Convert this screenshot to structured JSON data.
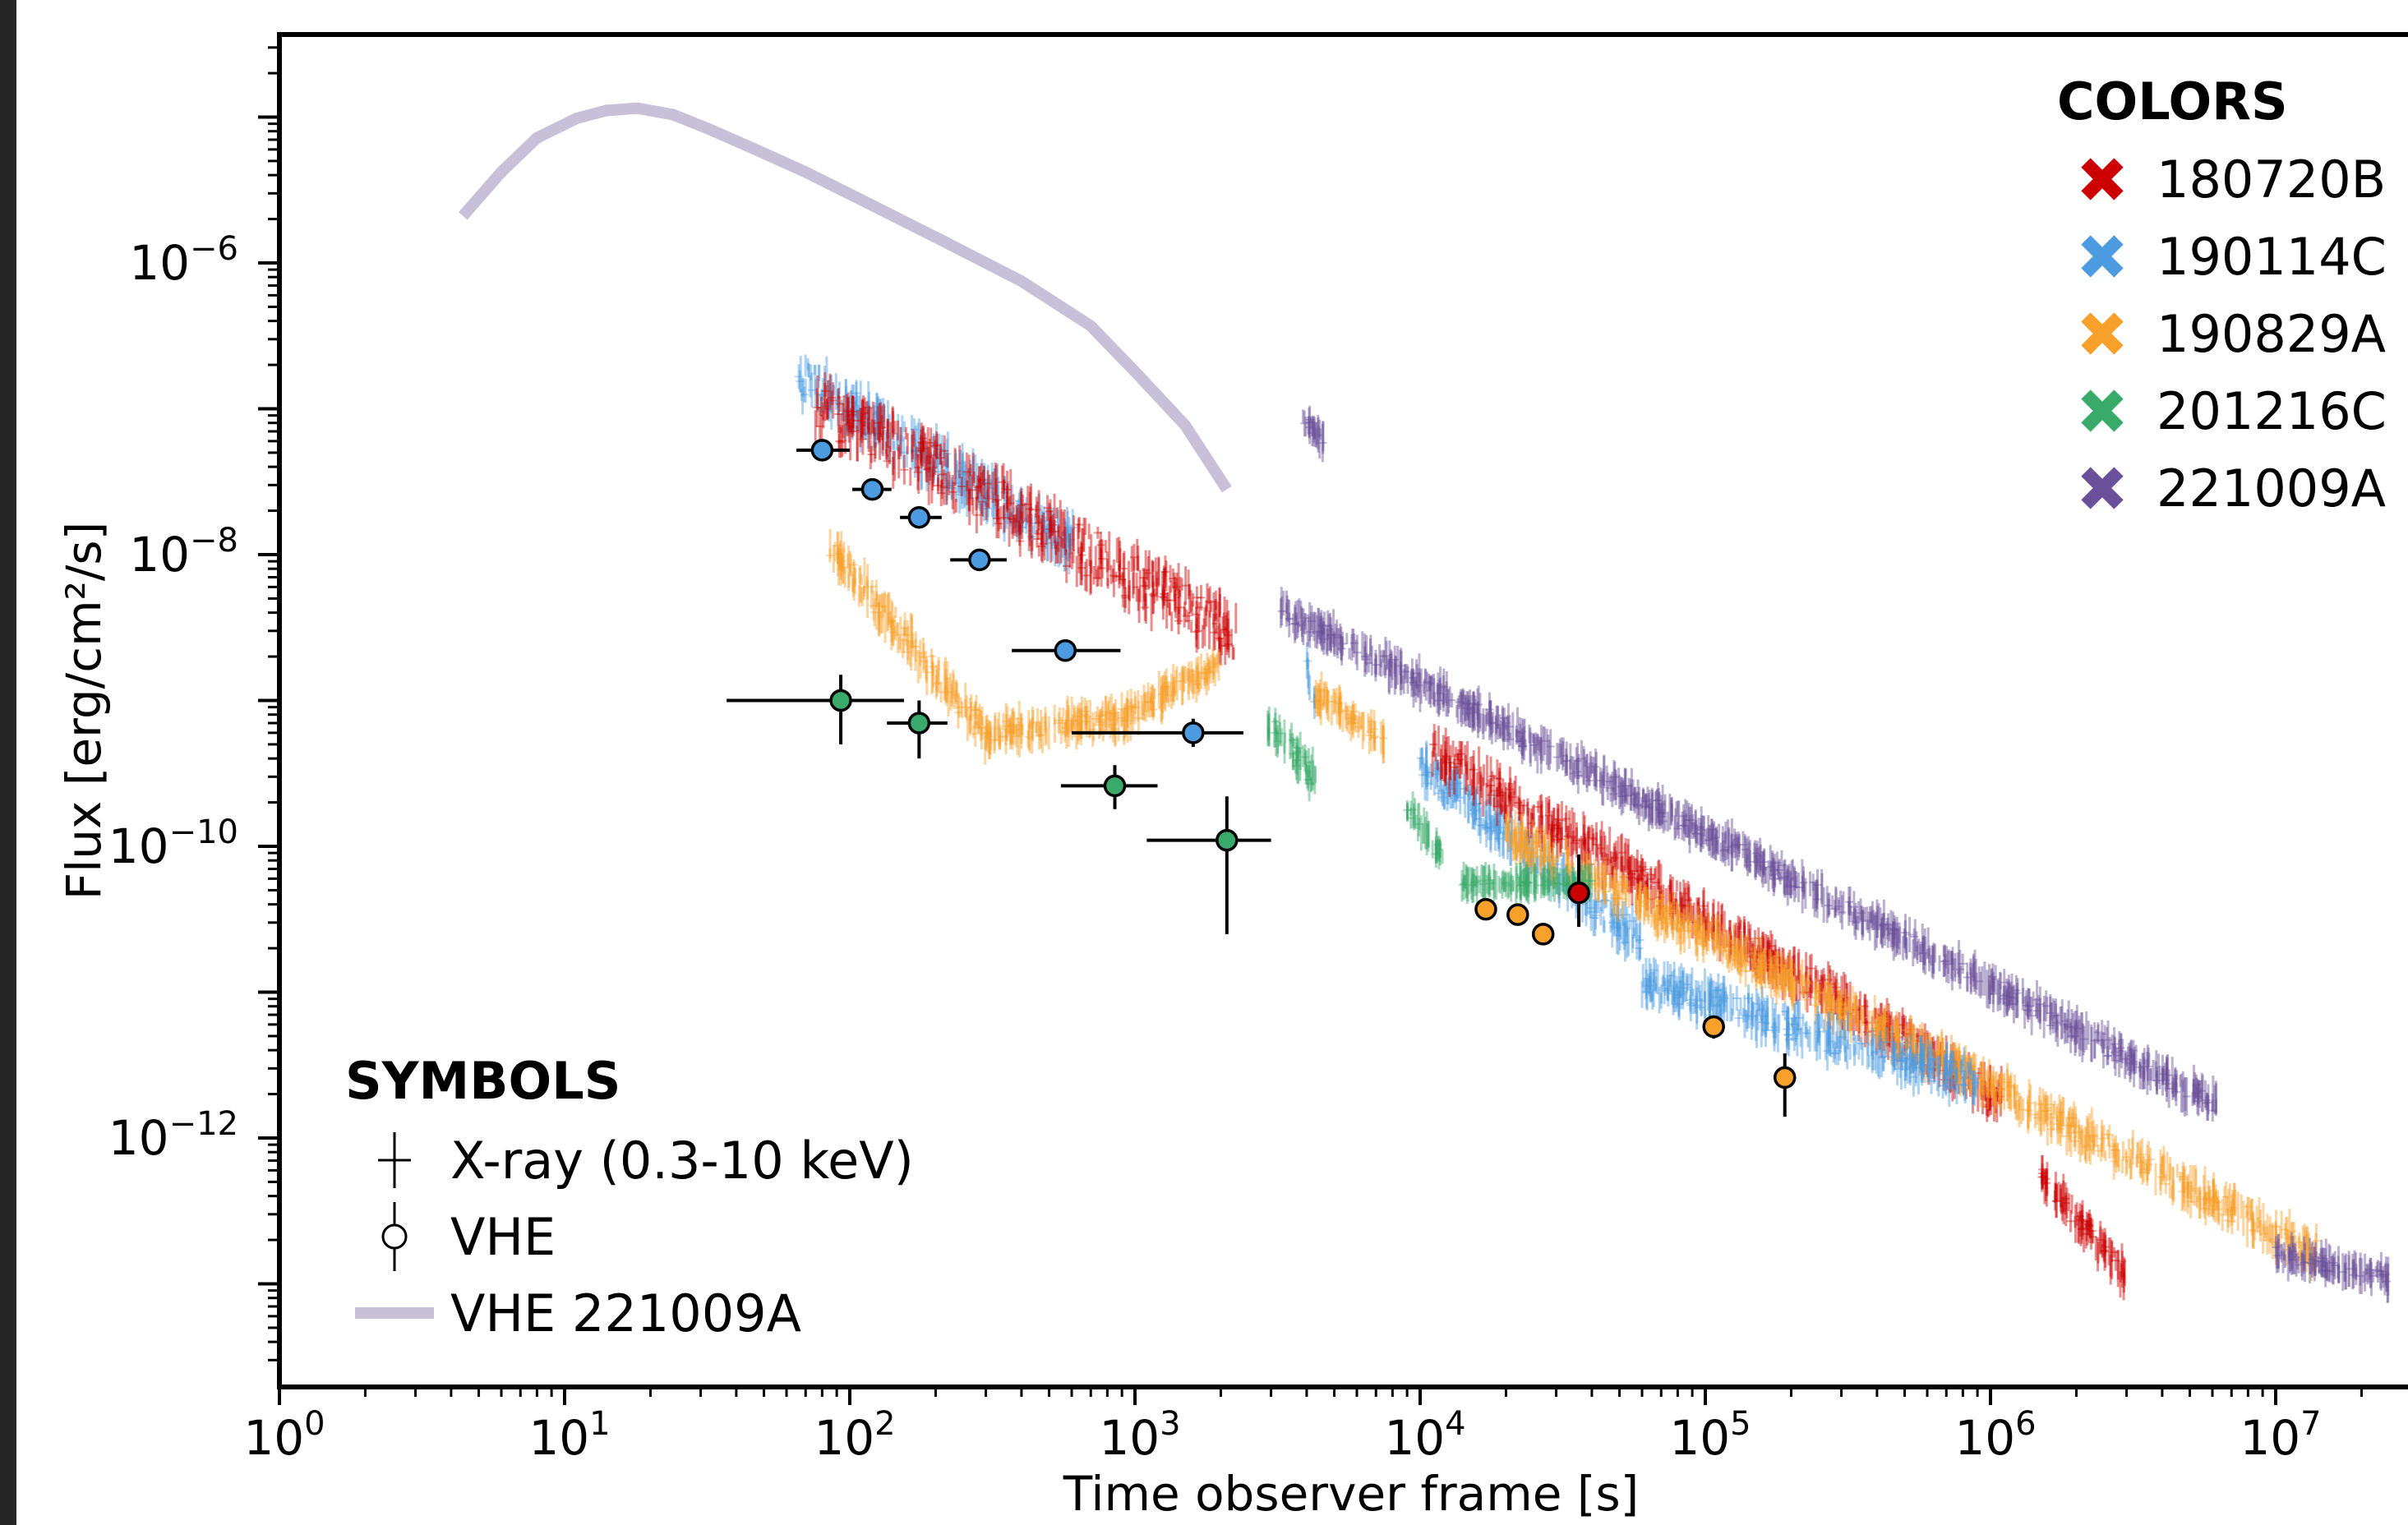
{
  "chart_data": {
    "type": "scatter",
    "xlabel": "Time observer frame [s]",
    "ylabel": "Flux [erg/cm²/s]",
    "x_scale": "log",
    "y_scale": "log",
    "xlim": [
      1,
      30000000
    ],
    "ylim": [
      2e-14,
      0.0001
    ],
    "x_ticks": [
      {
        "value": 1,
        "base": "10",
        "exp": "0"
      },
      {
        "value": 10,
        "base": "10",
        "exp": "1"
      },
      {
        "value": 100,
        "base": "10",
        "exp": "2"
      },
      {
        "value": 1000,
        "base": "10",
        "exp": "3"
      },
      {
        "value": 10000,
        "base": "10",
        "exp": "4"
      },
      {
        "value": 100000,
        "base": "10",
        "exp": "5"
      },
      {
        "value": 1000000,
        "base": "10",
        "exp": "6"
      },
      {
        "value": 10000000,
        "base": "10",
        "exp": "7"
      }
    ],
    "y_ticks": [
      {
        "value": 1e-06,
        "base": "10",
        "exp": "−6"
      },
      {
        "value": 1e-08,
        "base": "10",
        "exp": "−8"
      },
      {
        "value": 1e-10,
        "base": "10",
        "exp": "−10"
      },
      {
        "value": 1e-12,
        "base": "10",
        "exp": "−12"
      }
    ],
    "legend_colors": {
      "title": "COLORS",
      "placement": "top-right",
      "entries": [
        {
          "label": "180720B",
          "color": "#cc0000"
        },
        {
          "label": "190114C",
          "color": "#4c9be0"
        },
        {
          "label": "190829A",
          "color": "#f7a02a"
        },
        {
          "label": "201216C",
          "color": "#3aaa6a"
        },
        {
          "label": "221009A",
          "color": "#6a4f9a"
        }
      ]
    },
    "legend_symbols": {
      "title": "SYMBOLS",
      "placement": "bottom-left",
      "entries": [
        {
          "label": "X-ray (0.3-10 keV)",
          "symbol": "cross"
        },
        {
          "label": "VHE",
          "symbol": "circle-errorbar"
        },
        {
          "label": "VHE 221009A",
          "symbol": "band"
        }
      ]
    },
    "vhe_221009A_curve": {
      "color": "#c8bfd9",
      "x": [
        4.4,
        6,
        8,
        11,
        14,
        18,
        24,
        32,
        45,
        70,
        110,
        200,
        400,
        700,
        1000,
        1500,
        2100
      ],
      "y": [
        2.1e-06,
        4.2e-06,
        7.2e-06,
        9.8e-06,
        1.11e-05,
        1.15e-05,
        1.04e-05,
        8.3e-06,
        6.2e-06,
        4.2e-06,
        2.7e-06,
        1.5e-06,
        7.5e-07,
        3.7e-07,
        1.8e-07,
        7.7e-08,
        2.8e-08
      ]
    },
    "vhe_points": [
      {
        "grb": "190114C",
        "x": 80,
        "y": 5.2e-08,
        "xerr": [
          15,
          20
        ],
        "yerr": [
          6e-09,
          6e-09
        ]
      },
      {
        "grb": "190114C",
        "x": 120,
        "y": 2.8e-08,
        "xerr": [
          18,
          20
        ],
        "yerr": [
          3e-09,
          3e-09
        ]
      },
      {
        "grb": "190114C",
        "x": 175,
        "y": 1.8e-08,
        "xerr": [
          25,
          35
        ],
        "yerr": [
          2e-09,
          2e-09
        ]
      },
      {
        "grb": "190114C",
        "x": 285,
        "y": 9.2e-09,
        "xerr": [
          60,
          70
        ],
        "yerr": [
          1e-09,
          1e-09
        ]
      },
      {
        "grb": "190114C",
        "x": 570,
        "y": 2.2e-09,
        "xerr": [
          200,
          320
        ],
        "yerr": [
          3e-10,
          3e-10
        ]
      },
      {
        "grb": "190114C",
        "x": 1600,
        "y": 6e-10,
        "xerr": [
          1000,
          800
        ],
        "yerr": [
          1.2e-10,
          1.5e-10
        ]
      },
      {
        "grb": "201216C",
        "x": 93,
        "y": 1e-09,
        "xerr": [
          56,
          62
        ],
        "yerr": [
          5e-10,
          5e-10
        ]
      },
      {
        "grb": "201216C",
        "x": 175,
        "y": 7e-10,
        "xerr": [
          40,
          45
        ],
        "yerr": [
          3e-10,
          3e-10
        ]
      },
      {
        "grb": "201216C",
        "x": 850,
        "y": 2.6e-10,
        "xerr": [
          300,
          350
        ],
        "yerr": [
          8e-11,
          1e-10
        ]
      },
      {
        "grb": "201216C",
        "x": 2100,
        "y": 1.1e-10,
        "xerr": [
          1000,
          900
        ],
        "yerr": [
          8.5e-11,
          1.1e-10
        ]
      },
      {
        "grb": "190829A",
        "x": 17000,
        "y": 3.7e-11,
        "xerr": [
          0,
          0
        ],
        "yerr": [
          0,
          0
        ]
      },
      {
        "grb": "190829A",
        "x": 22000,
        "y": 3.4e-11,
        "xerr": [
          0,
          0
        ],
        "yerr": [
          0,
          0
        ]
      },
      {
        "grb": "190829A",
        "x": 27000,
        "y": 2.5e-11,
        "xerr": [
          0,
          0
        ],
        "yerr": [
          0,
          0
        ]
      },
      {
        "grb": "180720B",
        "x": 36000,
        "y": 4.8e-11,
        "xerr": [
          0,
          0
        ],
        "yerr": [
          2e-11,
          4e-11
        ]
      },
      {
        "grb": "190829A",
        "x": 107000,
        "y": 5.8e-12,
        "xerr": [
          0,
          0
        ],
        "yerr": [
          1e-12,
          1e-12
        ]
      },
      {
        "grb": "190829A",
        "x": 190000,
        "y": 2.6e-12,
        "xerr": [
          0,
          0
        ],
        "yerr": [
          1.2e-12,
          1.2e-12
        ]
      }
    ],
    "xray_segments": [
      {
        "grb": "190114C",
        "x0": 66,
        "x1": 620,
        "y0": 1.7e-07,
        "y1": 1.1e-08,
        "scatter": 0.28
      },
      {
        "grb": "180720B",
        "x0": 75,
        "x1": 2300,
        "y0": 1.1e-07,
        "y1": 2.8e-09,
        "scatter": 0.35
      },
      {
        "grb": "190829A",
        "x0": 85,
        "x1": 300,
        "y0": 1.1e-08,
        "y1": 6e-10,
        "scatter": 0.2
      },
      {
        "grb": "190829A",
        "x0": 300,
        "x1": 900,
        "y0": 6e-10,
        "y1": 7.5e-10,
        "scatter": 0.15
      },
      {
        "grb": "190829A",
        "x0": 900,
        "x1": 2000,
        "y0": 7.5e-10,
        "y1": 1.8e-09,
        "scatter": 0.12
      },
      {
        "grb": "221009A",
        "x0": 3800,
        "x1": 4600,
        "y0": 9e-08,
        "y1": 6e-08,
        "scatter": 0.08
      },
      {
        "grb": "190114C",
        "x0": 4000,
        "x1": 4300,
        "y0": 1.8e-09,
        "y1": 9e-10,
        "scatter": 0.15
      },
      {
        "grb": "201216C",
        "x0": 2900,
        "x1": 4400,
        "y0": 7e-10,
        "y1": 2.8e-10,
        "scatter": 0.18
      },
      {
        "grb": "190829A",
        "x0": 4300,
        "x1": 7500,
        "y0": 1.1e-09,
        "y1": 5.5e-10,
        "scatter": 0.12
      },
      {
        "grb": "201216C",
        "x0": 9000,
        "x1": 12000,
        "y0": 1.8e-10,
        "y1": 8.5e-11,
        "scatter": 0.1
      },
      {
        "grb": "190114C",
        "x0": 10000,
        "x1": 60000,
        "y0": 3.5e-10,
        "y1": 2.2e-11,
        "scatter": 0.2
      },
      {
        "grb": "180720B",
        "x0": 11000,
        "x1": 1100000,
        "y0": 4.5e-10,
        "y1": 1.8e-12,
        "scatter": 0.22
      },
      {
        "grb": "190829A",
        "x0": 20000,
        "x1": 14000000,
        "y0": 1.2e-10,
        "y1": 1.6e-13,
        "scatter": 0.18
      },
      {
        "grb": "190114C",
        "x0": 60000,
        "x1": 900000,
        "y0": 1.2e-11,
        "y1": 2.4e-12,
        "scatter": 0.2
      },
      {
        "grb": "221009A",
        "x0": 3200,
        "x1": 6200000,
        "y0": 4.3e-09,
        "y1": 1.7e-12,
        "scatter": 0.14
      },
      {
        "grb": "221009A",
        "x0": 10000000,
        "x1": 25000000,
        "y0": 1.6e-13,
        "y1": 1.1e-13,
        "scatter": 0.1
      },
      {
        "grb": "180720B",
        "x0": 1500000,
        "x1": 3000000,
        "y0": 5.5e-13,
        "y1": 1.1e-13,
        "scatter": 0.15
      },
      {
        "grb": "201216C",
        "x0": 14000,
        "x1": 40000,
        "y0": 5.6e-11,
        "y1": 5.6e-11,
        "scatter": 0.04
      }
    ]
  }
}
